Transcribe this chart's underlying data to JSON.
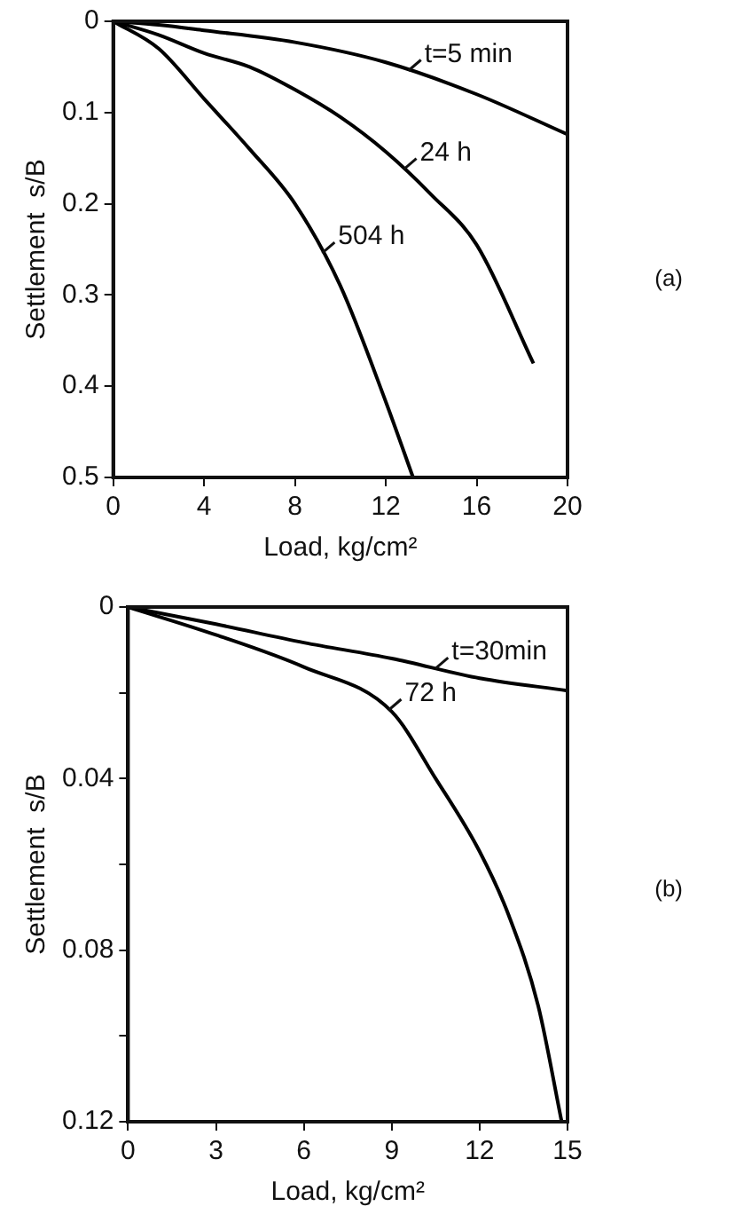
{
  "chart_data": [
    {
      "type": "line",
      "xlabel": "Load, kg/cm²",
      "ylabel": "Settlement  s/B",
      "xlim": [
        0,
        20
      ],
      "xticks": [
        0,
        4,
        8,
        12,
        16,
        20
      ],
      "ylim": [
        0.5,
        0
      ],
      "yticks": [
        0,
        0.1,
        0.2,
        0.3,
        0.4,
        0.5
      ],
      "grid": false,
      "legend": false,
      "marker": "none",
      "line_style": "solid",
      "series": [
        {
          "color": "#000000",
          "x": [
            0,
            2,
            4,
            8,
            12,
            16,
            20
          ],
          "values": [
            0,
            0.004,
            0.01,
            0.023,
            0.045,
            0.08,
            0.124
          ]
        },
        {
          "color": "#000000",
          "x": [
            0,
            2,
            4,
            6,
            8,
            10,
            12,
            14,
            16,
            18.5
          ],
          "values": [
            0,
            0.015,
            0.035,
            0.05,
            0.075,
            0.105,
            0.143,
            0.19,
            0.245,
            0.375
          ]
        },
        {
          "color": "#000000",
          "x": [
            0,
            2,
            4,
            6,
            8,
            10,
            12,
            13.2
          ],
          "values": [
            0,
            0.03,
            0.085,
            0.14,
            0.2,
            0.29,
            0.417,
            0.5
          ]
        }
      ],
      "annotations": [
        {
          "text": "t=5 min",
          "x": 13,
          "y": 0.054
        },
        {
          "text": "24 h",
          "x": 12.8,
          "y": 0.162
        },
        {
          "text": "504 h",
          "x": 9.2,
          "y": 0.254
        },
        "(a)"
      ]
    },
    {
      "type": "line",
      "xlabel": "Load, kg/cm²",
      "ylabel": "Settlement  s/B",
      "xlim": [
        0,
        15
      ],
      "xticks": [
        0,
        3,
        6,
        9,
        12,
        15
      ],
      "ylim": [
        0.12,
        0
      ],
      "yticks": [
        0,
        {
          "value": 0.02,
          "label": null
        },
        0.04,
        {
          "value": 0.06,
          "label": null
        },
        0.08,
        {
          "value": 0.1,
          "label": null
        },
        0.12
      ],
      "grid": false,
      "legend": false,
      "marker": "none",
      "line_style": "solid",
      "series": [
        {
          "color": "#000000",
          "x": [
            0,
            3,
            6,
            9,
            12,
            15
          ],
          "values": [
            0,
            0.004,
            0.0083,
            0.012,
            0.0166,
            0.0195
          ]
        },
        {
          "color": "#000000",
          "x": [
            0,
            3,
            6,
            9,
            10.5,
            12,
            13,
            14,
            14.8
          ],
          "values": [
            0,
            0.0065,
            0.014,
            0.0244,
            0.04,
            0.057,
            0.072,
            0.093,
            0.12
          ]
        }
      ],
      "annotations": [
        {
          "text": "t=30min",
          "x": 10.5,
          "y": 0.0143
        },
        {
          "text": "72 h",
          "x": 8.9,
          "y": 0.024
        },
        "(b)"
      ]
    }
  ]
}
